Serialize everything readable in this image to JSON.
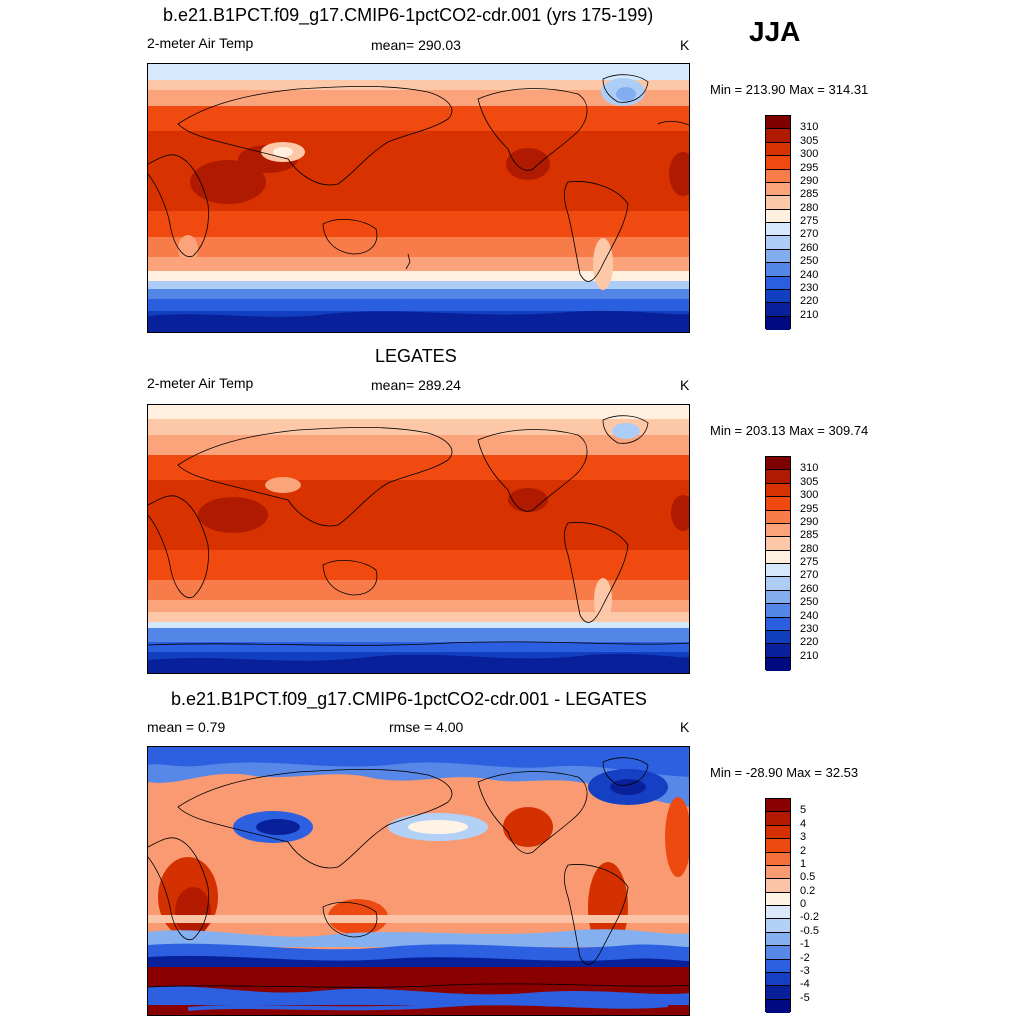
{
  "season": "JJA",
  "panels": [
    {
      "title": "b.e21.B1PCT.f09_g17.CMIP6-1pctCO2-cdr.001 (yrs 175-199)",
      "left_label": "2-meter Air Temp",
      "center_label": "mean= 290.03",
      "units": "K",
      "minmax": "Min = 213.90 Max = 314.31",
      "colorbar_labels": [
        "310",
        "305",
        "300",
        "295",
        "290",
        "285",
        "280",
        "275",
        "270",
        "260",
        "250",
        "240",
        "230",
        "220",
        "210"
      ]
    },
    {
      "title": "LEGATES",
      "left_label": "2-meter Air Temp",
      "center_label": "mean= 289.24",
      "units": "K",
      "minmax": "Min = 203.13 Max = 309.74",
      "colorbar_labels": [
        "310",
        "305",
        "300",
        "295",
        "290",
        "285",
        "280",
        "275",
        "270",
        "260",
        "250",
        "240",
        "230",
        "220",
        "210"
      ]
    },
    {
      "title": "b.e21.B1PCT.f09_g17.CMIP6-1pctCO2-cdr.001 - LEGATES",
      "left_label": "mean =   0.79",
      "center_label": "rmse =   4.00",
      "units": "K",
      "minmax": "Min = -28.90 Max =  32.53",
      "colorbar_labels": [
        "5",
        "4",
        "3",
        "2",
        "1",
        "0.5",
        "0.2",
        "0",
        "-0.2",
        "-0.5",
        "-1",
        "-2",
        "-3",
        "-4",
        "-5"
      ]
    }
  ],
  "colors": {
    "abs_scale": [
      "#7f0000",
      "#b01a00",
      "#d83200",
      "#f04a10",
      "#f77c4a",
      "#fba37b",
      "#fdc8a8",
      "#fff0e0",
      "#d6e8fb",
      "#aecdf6",
      "#82aef0",
      "#5486e8",
      "#2a5fe0",
      "#123fc0",
      "#08209a",
      "#000a80"
    ],
    "diff_scale": [
      "#8a0000",
      "#b31a00",
      "#d53000",
      "#ec4a10",
      "#f66e3a",
      "#f99a72",
      "#fcc4a6",
      "#fff3e6",
      "#dbe9fb",
      "#b3d0f6",
      "#85b0f0",
      "#5788e8",
      "#2c60e0",
      "#1640c4",
      "#08209a",
      "#000a80"
    ]
  }
}
